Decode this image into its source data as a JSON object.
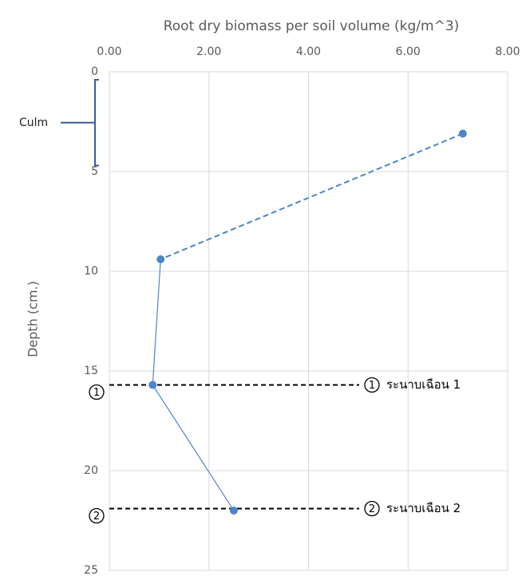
{
  "chart_data": {
    "type": "line",
    "title": "Root dry biomass per soil volume (kg/m^3)",
    "y_label": "Depth (cm.)",
    "xlim": [
      0,
      8
    ],
    "xticks": [
      {
        "value": 0,
        "label": "0.00"
      },
      {
        "value": 2,
        "label": "2.00"
      },
      {
        "value": 4,
        "label": "4.00"
      },
      {
        "value": 6,
        "label": "6.00"
      },
      {
        "value": 8,
        "label": "8.00"
      }
    ],
    "ylim": [
      0,
      25
    ],
    "y_inverted": true,
    "x_axis_position": "top",
    "yticks": [
      0,
      5,
      10,
      15,
      20,
      25
    ],
    "grid": true,
    "series": [
      {
        "color": "#4a86c8",
        "x": [
          7.1,
          1.03,
          0.87,
          2.5
        ],
        "values": [
          3.1,
          9.4,
          15.7,
          22.0
        ],
        "segment_styles": [
          "dashed",
          "solid",
          "solid"
        ]
      }
    ],
    "bracket": {
      "label": "Culm",
      "range": [
        0.4,
        4.7
      ],
      "color": "#3a5ba0"
    },
    "reference_lines": [
      {
        "y": 15.7,
        "marker": "1",
        "label": "ระนาบเฉือน 1"
      },
      {
        "y": 21.9,
        "marker": "2",
        "label": "ระนาบเฉือน 2"
      }
    ]
  }
}
